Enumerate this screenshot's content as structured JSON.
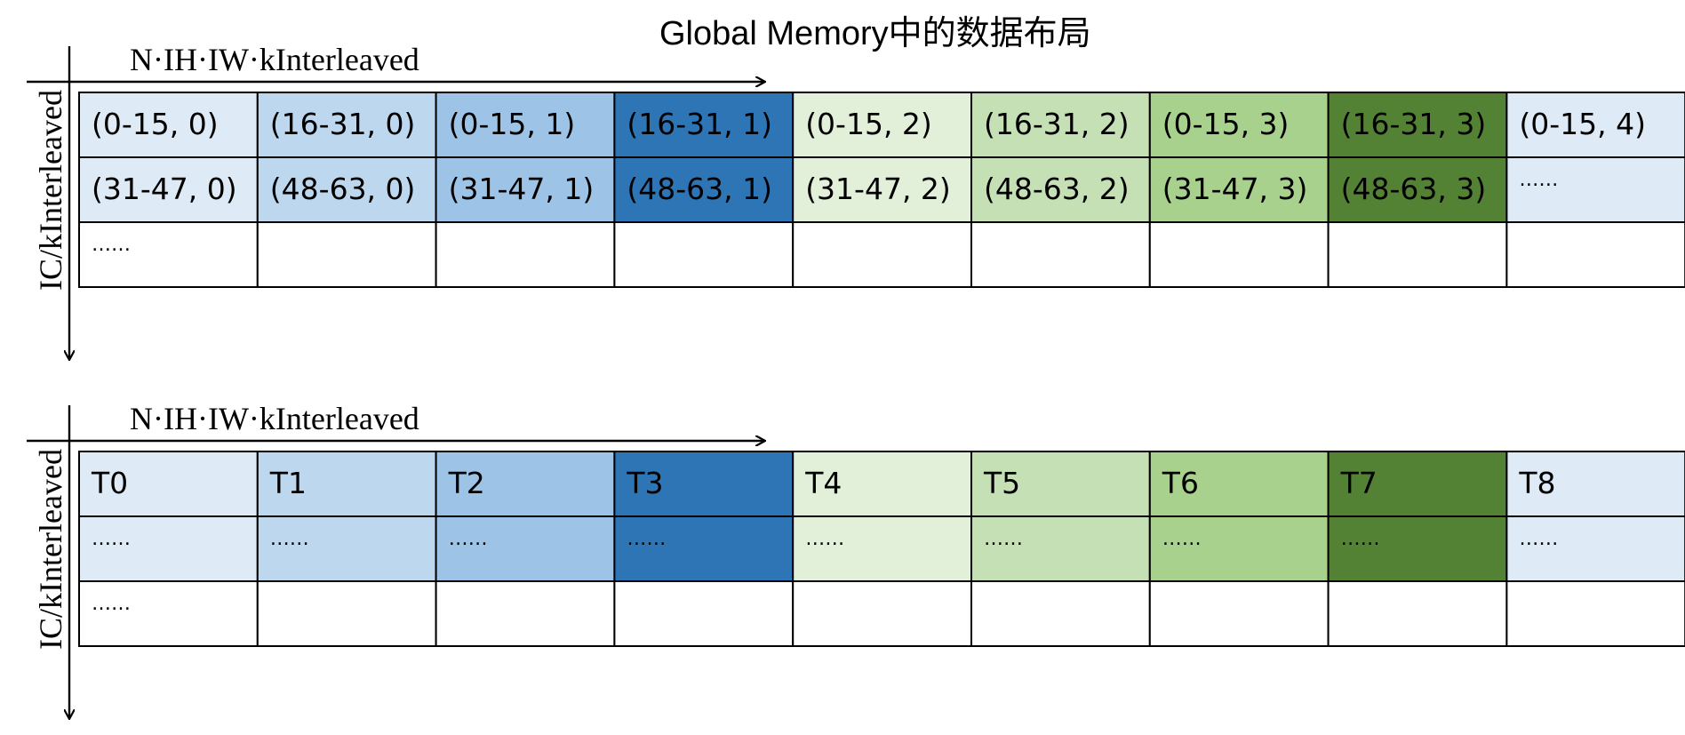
{
  "title": "Global Memory中的数据布局",
  "palette": [
    "#DEEAF6",
    "#BDD7EE",
    "#9DC3E6",
    "#2E75B6",
    "#E2F0D9",
    "#C5E0B4",
    "#A9D18E",
    "#548235",
    "#DEEAF6"
  ],
  "panels": [
    {
      "x_axis_label": "N·IH·IW·kInterleaved",
      "y_axis_label": "IC/kInterleaved",
      "rows": [
        {
          "filled": true,
          "cells": [
            "(0-15, 0)",
            "(16-31, 0)",
            "(0-15, 1)",
            "(16-31, 1)",
            "(0-15, 2)",
            "(16-31, 2)",
            "(0-15, 3)",
            "(16-31, 3)",
            "(0-15, 4)"
          ]
        },
        {
          "filled": true,
          "cells": [
            "(31-47, 0)",
            "(48-63, 0)",
            "(31-47, 1)",
            "(48-63, 1)",
            "(31-47, 2)",
            "(48-63, 2)",
            "(31-47, 3)",
            "(48-63, 3)",
            "……"
          ]
        },
        {
          "filled": false,
          "cells": [
            "……",
            "",
            "",
            "",
            "",
            "",
            "",
            "",
            ""
          ]
        }
      ]
    },
    {
      "x_axis_label": "N·IH·IW·kInterleaved",
      "y_axis_label": "IC/kInterleaved",
      "rows": [
        {
          "filled": true,
          "cells": [
            "T0",
            "T1",
            "T2",
            "T3",
            "T4",
            "T5",
            "T6",
            "T7",
            "T8"
          ]
        },
        {
          "filled": true,
          "cells": [
            "……",
            "……",
            "……",
            "……",
            "……",
            "……",
            "……",
            "……",
            "……"
          ]
        },
        {
          "filled": false,
          "cells": [
            "……",
            "",
            "",
            "",
            "",
            "",
            "",
            "",
            ""
          ]
        }
      ]
    }
  ]
}
